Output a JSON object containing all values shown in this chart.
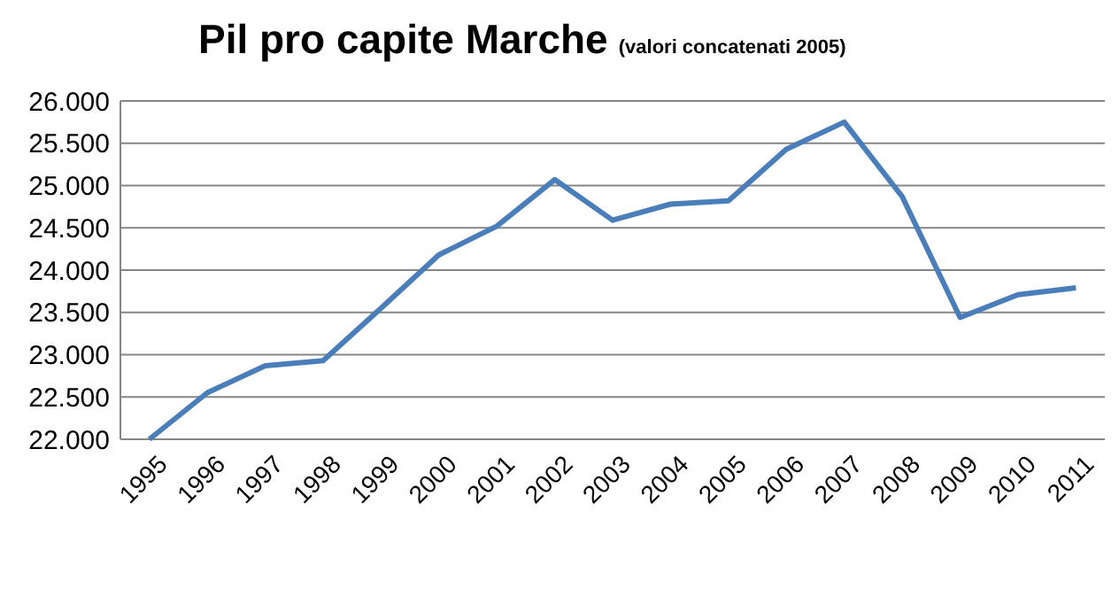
{
  "chart_data": {
    "type": "line",
    "title": "Pil pro capite Marche",
    "subtitle": "(valori concatenati 2005)",
    "categories": [
      "1995",
      "1996",
      "1997",
      "1998",
      "1999",
      "2000",
      "2001",
      "2002",
      "2003",
      "2004",
      "2005",
      "2006",
      "2007",
      "2008",
      "2009",
      "2010",
      "2011"
    ],
    "series": [
      {
        "color": "#4a7ebb",
        "values": [
          22000,
          22550,
          22870,
          22930,
          23550,
          24180,
          24520,
          25070,
          24590,
          24780,
          24820,
          25430,
          25750,
          24870,
          23440,
          23710,
          23790
        ]
      }
    ],
    "ylim": [
      22000,
      26000
    ],
    "yticks": [
      {
        "value": 22000,
        "label": "22.000"
      },
      {
        "value": 22500,
        "label": "22.500"
      },
      {
        "value": 23000,
        "label": "23.000"
      },
      {
        "value": 23500,
        "label": "23.500"
      },
      {
        "value": 24000,
        "label": "24.000"
      },
      {
        "value": 24500,
        "label": "24.500"
      },
      {
        "value": 25000,
        "label": "25.000"
      },
      {
        "value": 25500,
        "label": "25.500"
      },
      {
        "value": 26000,
        "label": "26.000"
      }
    ],
    "grid": "y",
    "marker": "none",
    "line_style": "solid"
  }
}
